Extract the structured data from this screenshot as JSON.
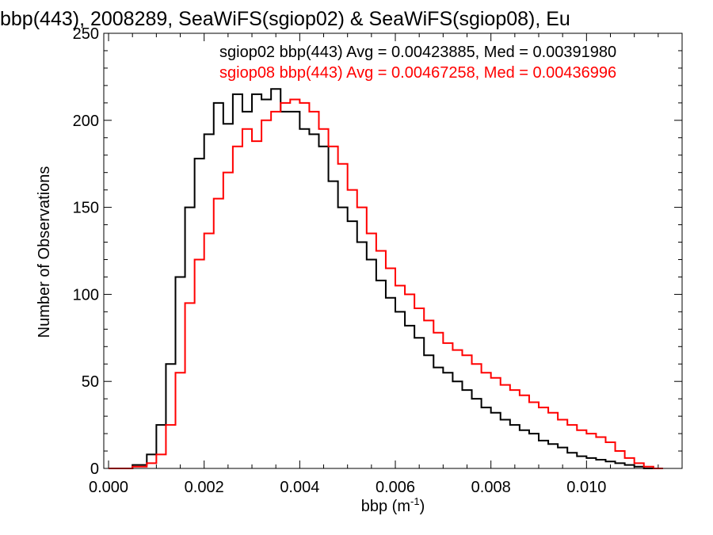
{
  "chart_data": {
    "type": "line",
    "style": "step-histogram",
    "title": "bbp(443), 2008289, SeaWiFS(sgiop02) & SeaWiFS(sgiop08), Eu",
    "xlabel_base": "bbp (m",
    "xlabel_sup": "-1",
    "xlabel_end": ")",
    "ylabel": "Number of Observations",
    "xlim": [
      -0.0001,
      0.012
    ],
    "ylim": [
      0,
      250
    ],
    "xticks": [
      0.0,
      0.002,
      0.004,
      0.006,
      0.008,
      0.01
    ],
    "xtick_labels": [
      "0.000",
      "0.002",
      "0.004",
      "0.006",
      "0.008",
      "0.010"
    ],
    "yticks": [
      0,
      50,
      100,
      150,
      200,
      250
    ],
    "ytick_labels": [
      "0",
      "50",
      "100",
      "150",
      "200",
      "250"
    ],
    "grid": false,
    "series": [
      {
        "name": "sgiop02",
        "color": "#000000",
        "label": "sgiop02 bbp(443) Avg = 0.00423885, Med = 0.00391980",
        "x": [
          0.0,
          0.0005,
          0.0008,
          0.001,
          0.0012,
          0.0014,
          0.0016,
          0.0018,
          0.002,
          0.0022,
          0.0024,
          0.0026,
          0.0028,
          0.003,
          0.0032,
          0.0034,
          0.0036,
          0.0038,
          0.004,
          0.0042,
          0.0044,
          0.0046,
          0.0048,
          0.005,
          0.0052,
          0.0054,
          0.0056,
          0.0058,
          0.006,
          0.0062,
          0.0064,
          0.0066,
          0.0068,
          0.007,
          0.0072,
          0.0074,
          0.0076,
          0.0078,
          0.008,
          0.0082,
          0.0084,
          0.0086,
          0.0088,
          0.009,
          0.0092,
          0.0094,
          0.0096,
          0.0098,
          0.01,
          0.0102,
          0.0104,
          0.0106,
          0.0108,
          0.011,
          0.0112
        ],
        "y": [
          0,
          2,
          8,
          25,
          60,
          110,
          150,
          178,
          192,
          210,
          198,
          215,
          205,
          215,
          212,
          218,
          205,
          205,
          195,
          192,
          185,
          165,
          150,
          142,
          130,
          120,
          108,
          98,
          90,
          82,
          75,
          65,
          58,
          55,
          50,
          45,
          40,
          35,
          32,
          28,
          25,
          22,
          20,
          16,
          14,
          12,
          9,
          7,
          6,
          5,
          4,
          3,
          2,
          1,
          0
        ]
      },
      {
        "name": "sgiop08",
        "color": "#ff0000",
        "label": "sgiop08 bbp(443) Avg = 0.00467258, Med = 0.00436996",
        "x": [
          0.0,
          0.0005,
          0.0008,
          0.001,
          0.0012,
          0.0014,
          0.0016,
          0.0018,
          0.002,
          0.0022,
          0.0024,
          0.0026,
          0.0028,
          0.003,
          0.0032,
          0.0034,
          0.0036,
          0.0038,
          0.004,
          0.0042,
          0.0044,
          0.0046,
          0.0048,
          0.005,
          0.0052,
          0.0054,
          0.0056,
          0.0058,
          0.006,
          0.0062,
          0.0064,
          0.0066,
          0.0068,
          0.007,
          0.0072,
          0.0074,
          0.0076,
          0.0078,
          0.008,
          0.0082,
          0.0084,
          0.0086,
          0.0088,
          0.009,
          0.0092,
          0.0094,
          0.0096,
          0.0098,
          0.01,
          0.0102,
          0.0104,
          0.0106,
          0.0108,
          0.011,
          0.0112,
          0.0114
        ],
        "y": [
          0,
          1,
          3,
          8,
          25,
          55,
          95,
          120,
          135,
          155,
          170,
          185,
          195,
          188,
          200,
          205,
          210,
          212,
          210,
          205,
          195,
          185,
          175,
          160,
          150,
          135,
          125,
          115,
          105,
          100,
          92,
          85,
          78,
          72,
          68,
          65,
          60,
          55,
          52,
          48,
          45,
          42,
          38,
          35,
          32,
          28,
          25,
          22,
          20,
          18,
          15,
          10,
          6,
          3,
          1,
          0
        ]
      }
    ]
  }
}
